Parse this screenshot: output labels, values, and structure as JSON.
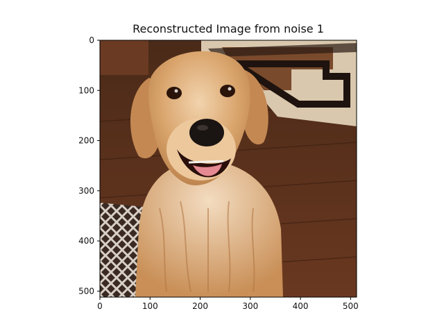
{
  "figure": {
    "title": "Reconstructed Image from noise 1"
  },
  "image": {
    "subject": "golden retriever dog",
    "colors": {
      "floor": "#5a2e18",
      "fur": "#d8a06a",
      "rug_light": "#d9c8ad",
      "rug_dark": "#2a1a12"
    }
  },
  "axes": {
    "xlim": [
      0,
      512
    ],
    "ylim": [
      512,
      0
    ],
    "x_ticks": [
      "0",
      "100",
      "200",
      "300",
      "400",
      "500"
    ],
    "y_ticks": [
      "0",
      "100",
      "200",
      "300",
      "400",
      "500"
    ]
  }
}
